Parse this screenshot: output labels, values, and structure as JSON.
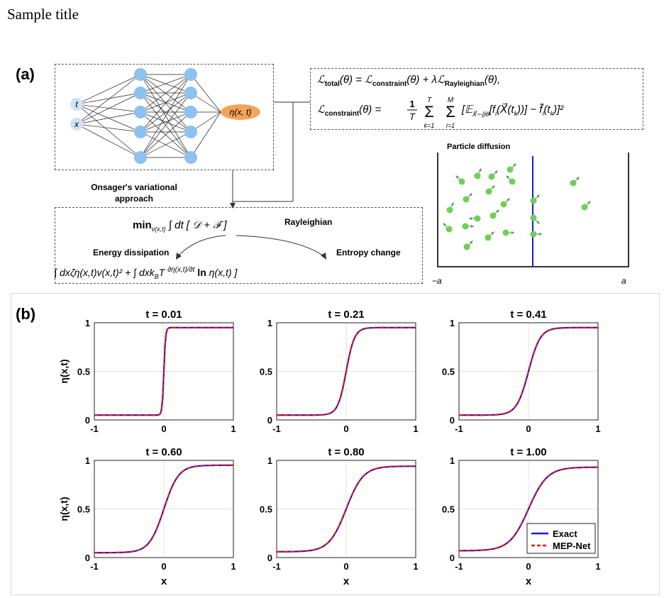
{
  "page_title": "Sample title",
  "panel_a": {
    "label": "(a)",
    "network": {
      "inputs": [
        "t",
        "x"
      ],
      "output": "η(x, t)"
    },
    "loss_total": "ℒ_total(θ) = ℒ_constraint(θ) + λℒ_Rayleighian(θ),",
    "loss_constraint": "ℒ_constraint(θ) = (1/T) Σ_{k=1}^{T} Σ_{i=1}^{M} [ 𝔼_{X⃗∼p̂θ}[ f_i(X⃗(t_k)) ] − f̃_i(t_k) ]²",
    "onsager_label": "Onsager's variational approach",
    "min_expr": "min_{v(x,t)} ∫ dt [ 𝒟 + ℱ̇ ]",
    "rayleighian_label": "Rayleighian",
    "energy_label": "Energy dissipation",
    "entropy_label": "Entropy change",
    "full_expr": "min_{v(x,t)} ∫ dt [ ½ ∫ dx ζ η(x,t) v(x,t)² + ∫ dx k_B T (∂η(x,t)/∂t) ln η(x,t) ]",
    "diffusion": {
      "title": "Particle diffusion",
      "left_label": "−a",
      "right_label": "a"
    }
  },
  "panel_b": {
    "label": "(b)",
    "colors": {
      "exact": "#1a1adb",
      "mep": "#e01818"
    },
    "legend": [
      "Exact",
      "MEP-Net"
    ]
  },
  "chart_data": [
    {
      "type": "line",
      "title": "t = 0.01",
      "xlabel": "",
      "ylabel": "η(x,t)",
      "xlim": [
        -1,
        1
      ],
      "ylim": [
        0,
        1
      ],
      "x_ticks": [
        "-1",
        "0",
        "1"
      ],
      "y_ticks": [
        "0",
        "0.5",
        "1"
      ],
      "width": 0.025,
      "series": [
        {
          "name": "Exact",
          "x": [
            -1,
            1
          ],
          "y": [
            0.05,
            0.95
          ]
        },
        {
          "name": "MEP-Net",
          "x": [
            -1,
            1
          ],
          "y": [
            0.05,
            0.95
          ]
        }
      ]
    },
    {
      "type": "line",
      "title": "t = 0.21",
      "xlabel": "",
      "ylabel": "",
      "xlim": [
        -1,
        1
      ],
      "ylim": [
        0,
        1
      ],
      "x_ticks": [
        "-1",
        "0",
        "1"
      ],
      "y_ticks": [
        "0",
        "0.5",
        "1"
      ],
      "width": 0.12,
      "series": [
        {
          "name": "Exact",
          "x": [
            -1,
            1
          ],
          "y": [
            0.05,
            0.95
          ]
        },
        {
          "name": "MEP-Net",
          "x": [
            -1,
            1
          ],
          "y": [
            0.05,
            0.95
          ]
        }
      ]
    },
    {
      "type": "line",
      "title": "t = 0.41",
      "xlabel": "",
      "ylabel": "",
      "xlim": [
        -1,
        1
      ],
      "ylim": [
        0,
        1
      ],
      "x_ticks": [
        "-1",
        "0",
        "1"
      ],
      "y_ticks": [
        "0",
        "0.5",
        "1"
      ],
      "width": 0.17,
      "series": [
        {
          "name": "Exact",
          "x": [
            -1,
            1
          ],
          "y": [
            0.05,
            0.95
          ]
        },
        {
          "name": "MEP-Net",
          "x": [
            -1,
            1
          ],
          "y": [
            0.05,
            0.95
          ]
        }
      ]
    },
    {
      "type": "line",
      "title": "t = 0.60",
      "xlabel": "x",
      "ylabel": "η(x,t)",
      "xlim": [
        -1,
        1
      ],
      "ylim": [
        0,
        1
      ],
      "x_ticks": [
        "-1",
        "0",
        "1"
      ],
      "y_ticks": [
        "0",
        "0.5",
        "1"
      ],
      "width": 0.21,
      "series": [
        {
          "name": "Exact",
          "x": [
            -1,
            1
          ],
          "y": [
            0.05,
            0.95
          ]
        },
        {
          "name": "MEP-Net",
          "x": [
            -1,
            1
          ],
          "y": [
            0.05,
            0.95
          ]
        }
      ]
    },
    {
      "type": "line",
      "title": "t = 0.80",
      "xlabel": "x",
      "ylabel": "",
      "xlim": [
        -1,
        1
      ],
      "ylim": [
        0,
        1
      ],
      "x_ticks": [
        "-1",
        "0",
        "1"
      ],
      "y_ticks": [
        "0",
        "0.5",
        "1"
      ],
      "width": 0.245,
      "series": [
        {
          "name": "Exact",
          "x": [
            -1,
            1
          ],
          "y": [
            0.06,
            0.94
          ]
        },
        {
          "name": "MEP-Net",
          "x": [
            -1,
            1
          ],
          "y": [
            0.06,
            0.94
          ]
        }
      ]
    },
    {
      "type": "line",
      "title": "t = 1.00",
      "xlabel": "x",
      "ylabel": "",
      "xlim": [
        -1,
        1
      ],
      "ylim": [
        0,
        1
      ],
      "x_ticks": [
        "-1",
        "0",
        "1"
      ],
      "y_ticks": [
        "0",
        "0.5",
        "1"
      ],
      "width": 0.27,
      "legend": "bottom-right",
      "series": [
        {
          "name": "Exact",
          "x": [
            -1,
            1
          ],
          "y": [
            0.07,
            0.93
          ]
        },
        {
          "name": "MEP-Net",
          "x": [
            -1,
            1
          ],
          "y": [
            0.07,
            0.93
          ]
        }
      ]
    }
  ]
}
